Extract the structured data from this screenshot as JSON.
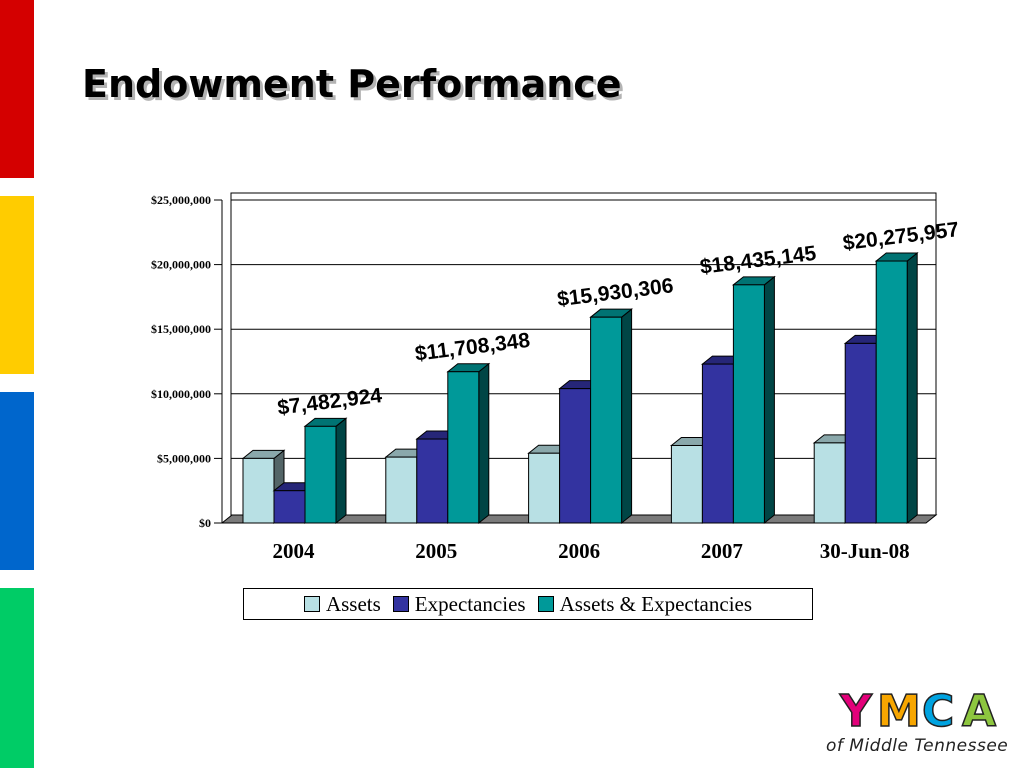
{
  "slide": {
    "title": "Endowment Performance",
    "stripe_colors": [
      "#d40000",
      "#ffcc00",
      "#0066cc",
      "#00cc66"
    ]
  },
  "logo": {
    "letters": [
      "Y",
      "M",
      "C",
      "A"
    ],
    "letter_colors": [
      "#e3007a",
      "#f7a600",
      "#00a3e0",
      "#8dc63f"
    ],
    "tagline": "of Middle Tennessee"
  },
  "chart_data": {
    "type": "bar",
    "categories": [
      "2004",
      "2005",
      "2006",
      "2007",
      "30-Jun-08"
    ],
    "series": [
      {
        "name": "Assets",
        "color": "#b8e0e4",
        "values": [
          5000000,
          5100000,
          5400000,
          6000000,
          6200000
        ]
      },
      {
        "name": "Expectancies",
        "color": "#3333a0",
        "values": [
          2500000,
          6500000,
          10400000,
          12300000,
          13900000
        ]
      },
      {
        "name": "Assets & Expectancies",
        "color": "#009999",
        "values": [
          7482924,
          11708348,
          15930306,
          18435145,
          20275957
        ]
      }
    ],
    "data_labels": [
      "$7,482,924",
      "$11,708,348",
      "$15,930,306",
      "$18,435,145",
      "$20,275,957"
    ],
    "y_ticks": [
      "$0",
      "$5,000,000",
      "$10,000,000",
      "$15,000,000",
      "$20,000,000",
      "$25,000,000"
    ],
    "ylim": [
      0,
      25000000
    ],
    "grid": true,
    "legend_position": "bottom",
    "xlabel": "",
    "ylabel": "",
    "title": ""
  }
}
